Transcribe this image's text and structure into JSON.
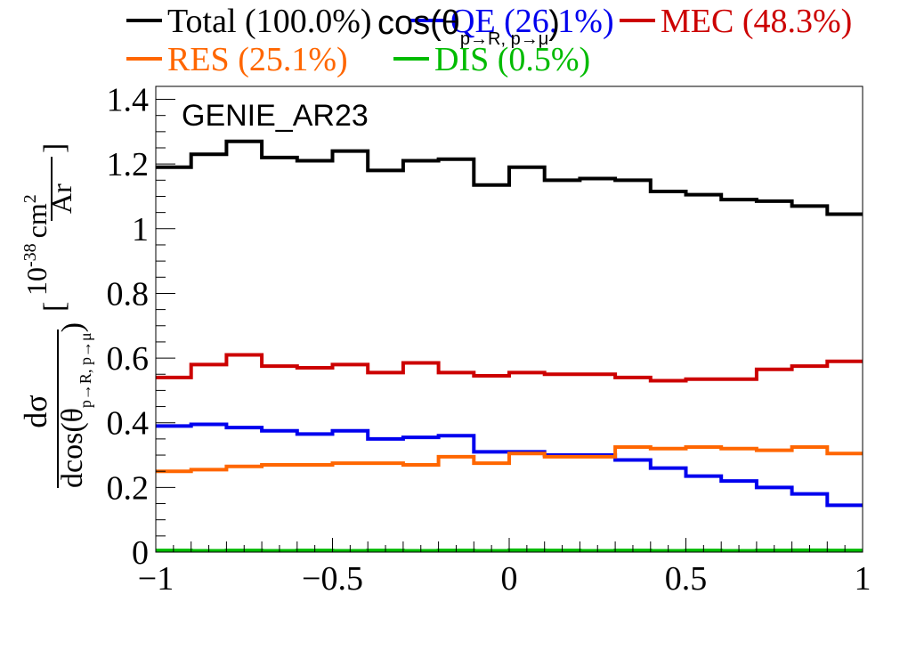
{
  "chart_data": {
    "type": "line",
    "title": "cos(θ",
    "title_sub": "p→R, p→μ",
    "title_close": ")",
    "annotation": "GENIE_AR23",
    "xlabel": "",
    "ylabel": {
      "numerator": "dσ",
      "denominator": "dcos(θ",
      "denominator_sub": "p→R, p→μ",
      "denominator_close": ")",
      "unit_prefix": "10",
      "unit_exp": "-38",
      "unit_num": "cm",
      "unit_num_exp": "2",
      "unit_den": "Ar"
    },
    "xlim": [
      -1,
      1
    ],
    "ylim": [
      0,
      1.44
    ],
    "x_ticks": [
      {
        "value": -1,
        "label": "−1"
      },
      {
        "value": -0.5,
        "label": "−0.5"
      },
      {
        "value": 0,
        "label": "0"
      },
      {
        "value": 0.5,
        "label": "0.5"
      },
      {
        "value": 1,
        "label": "1"
      }
    ],
    "y_ticks": [
      {
        "value": 0,
        "label": "0"
      },
      {
        "value": 0.2,
        "label": "0.2"
      },
      {
        "value": 0.4,
        "label": "0.4"
      },
      {
        "value": 0.6,
        "label": "0.6"
      },
      {
        "value": 0.8,
        "label": "0.8"
      },
      {
        "value": 1.0,
        "label": "1"
      },
      {
        "value": 1.2,
        "label": "1.2"
      },
      {
        "value": 1.4,
        "label": "1.4"
      }
    ],
    "bin_edges": [
      -1,
      -0.9,
      -0.8,
      -0.7,
      -0.6,
      -0.5,
      -0.4,
      -0.3,
      -0.2,
      -0.1,
      0,
      0.1,
      0.2,
      0.3,
      0.4,
      0.5,
      0.6,
      0.7,
      0.8,
      0.9,
      1
    ],
    "series": [
      {
        "name": "Total (100.0%)",
        "color": "#000000",
        "values": [
          1.19,
          1.23,
          1.27,
          1.22,
          1.21,
          1.24,
          1.18,
          1.21,
          1.215,
          1.135,
          1.19,
          1.15,
          1.155,
          1.15,
          1.115,
          1.105,
          1.09,
          1.085,
          1.07,
          1.045
        ]
      },
      {
        "name": "QE (26.1%)",
        "color": "#0000ee",
        "values": [
          0.39,
          0.395,
          0.385,
          0.375,
          0.365,
          0.375,
          0.35,
          0.355,
          0.36,
          0.31,
          0.31,
          0.3,
          0.3,
          0.285,
          0.26,
          0.235,
          0.22,
          0.2,
          0.18,
          0.145
        ]
      },
      {
        "name": "MEC (48.3%)",
        "color": "#cc0000",
        "values": [
          0.54,
          0.58,
          0.61,
          0.575,
          0.57,
          0.58,
          0.555,
          0.585,
          0.555,
          0.545,
          0.555,
          0.55,
          0.55,
          0.54,
          0.53,
          0.535,
          0.535,
          0.565,
          0.575,
          0.59
        ]
      },
      {
        "name": "RES (25.1%)",
        "color": "#ff6600",
        "values": [
          0.25,
          0.255,
          0.265,
          0.27,
          0.27,
          0.275,
          0.275,
          0.27,
          0.295,
          0.275,
          0.305,
          0.295,
          0.295,
          0.325,
          0.32,
          0.325,
          0.32,
          0.315,
          0.325,
          0.305
        ]
      },
      {
        "name": "DIS (0.5%)",
        "color": "#00bb00",
        "values": [
          0.005,
          0.004,
          0.005,
          0.004,
          0.005,
          0.004,
          0.005,
          0.004,
          0.005,
          0.004,
          0.006,
          0.005,
          0.004,
          0.005,
          0.004,
          0.005,
          0.004,
          0.005,
          0.006,
          0.005
        ]
      }
    ],
    "legend_position": "top"
  }
}
